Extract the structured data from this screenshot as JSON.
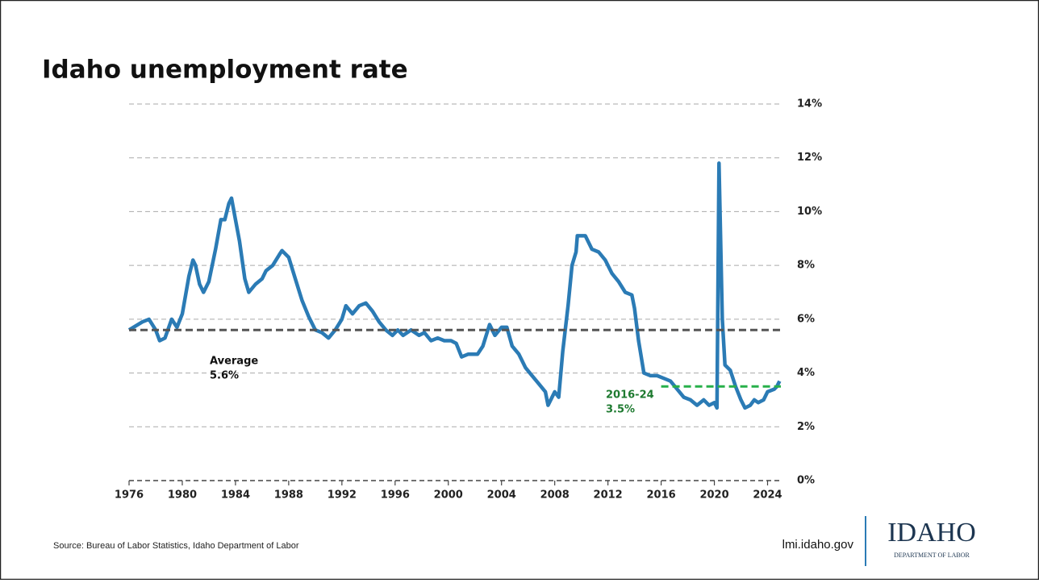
{
  "chart_data": {
    "type": "line",
    "title": "Idaho unemployment rate",
    "color": "#2b7bb5",
    "xlim": [
      1976,
      2025
    ],
    "xticks": [
      1976,
      1980,
      1984,
      1988,
      1992,
      1996,
      2000,
      2004,
      2008,
      2012,
      2016,
      2020,
      2024
    ],
    "ylim": [
      0,
      14
    ],
    "yticks": [
      {
        "value": 0,
        "label": "0%"
      },
      {
        "value": 2,
        "label": "2%"
      },
      {
        "value": 4,
        "label": "4%"
      },
      {
        "value": 6,
        "label": "6%"
      },
      {
        "value": 8,
        "label": "8%"
      },
      {
        "value": 10,
        "label": "10%"
      },
      {
        "value": 12,
        "label": "12%"
      },
      {
        "value": 14,
        "label": "14%"
      }
    ],
    "grid": true,
    "x": [
      1976.0,
      1977.0,
      1977.5,
      1978.0,
      1978.3,
      1978.7,
      1979.2,
      1979.6,
      1980.0,
      1980.5,
      1980.8,
      1981.0,
      1981.3,
      1981.6,
      1982.0,
      1982.5,
      1982.9,
      1983.2,
      1983.5,
      1983.7,
      1984.0,
      1984.3,
      1984.7,
      1985.0,
      1985.5,
      1986.0,
      1986.3,
      1986.8,
      1987.3,
      1987.5,
      1988.0,
      1988.5,
      1989.0,
      1989.5,
      1990.0,
      1990.5,
      1991.0,
      1991.5,
      1992.0,
      1992.3,
      1992.8,
      1993.3,
      1993.8,
      1994.3,
      1994.8,
      1995.3,
      1995.8,
      1996.2,
      1996.6,
      1997.2,
      1997.8,
      1998.2,
      1998.7,
      1999.2,
      1999.7,
      2000.2,
      2000.6,
      2001.0,
      2001.5,
      2002.2,
      2002.6,
      2003.1,
      2003.5,
      2004.0,
      2004.4,
      2004.8,
      2005.3,
      2005.8,
      2006.3,
      2006.8,
      2007.3,
      2007.5,
      2008.0,
      2008.3,
      2008.6,
      2009.0,
      2009.3,
      2009.6,
      2009.7,
      2010.3,
      2010.8,
      2011.3,
      2011.8,
      2012.3,
      2012.8,
      2013.3,
      2013.8,
      2014.0,
      2014.3,
      2014.7,
      2015.2,
      2015.7,
      2016.2,
      2016.7,
      2017.2,
      2017.7,
      2018.2,
      2018.7,
      2019.2,
      2019.6,
      2020.0,
      2020.2,
      2020.35,
      2020.6,
      2020.8,
      2021.2,
      2021.6,
      2022.0,
      2022.3,
      2022.7,
      2023.0,
      2023.3,
      2023.7,
      2024.0,
      2024.5,
      2024.7,
      2024.9
    ],
    "values": [
      5.6,
      5.9,
      6.0,
      5.6,
      5.2,
      5.3,
      6.0,
      5.7,
      6.2,
      7.6,
      8.2,
      8.0,
      7.3,
      7.0,
      7.4,
      8.6,
      9.7,
      9.7,
      10.3,
      10.5,
      9.7,
      8.9,
      7.5,
      7.0,
      7.3,
      7.5,
      7.8,
      8.0,
      8.4,
      8.55,
      8.3,
      7.5,
      6.7,
      6.1,
      5.6,
      5.5,
      5.3,
      5.6,
      6.0,
      6.5,
      6.2,
      6.5,
      6.6,
      6.3,
      5.9,
      5.6,
      5.4,
      5.6,
      5.4,
      5.6,
      5.4,
      5.5,
      5.2,
      5.3,
      5.2,
      5.2,
      5.1,
      4.6,
      4.7,
      4.7,
      5.0,
      5.8,
      5.4,
      5.7,
      5.7,
      5.0,
      4.7,
      4.2,
      3.9,
      3.6,
      3.3,
      2.8,
      3.3,
      3.1,
      4.8,
      6.5,
      8.0,
      8.5,
      9.1,
      9.1,
      8.6,
      8.5,
      8.2,
      7.7,
      7.4,
      7.0,
      6.9,
      6.4,
      5.2,
      4.0,
      3.9,
      3.9,
      3.8,
      3.7,
      3.4,
      3.1,
      3.0,
      2.8,
      3.0,
      2.8,
      2.9,
      2.7,
      11.8,
      6.0,
      4.3,
      4.1,
      3.5,
      3.0,
      2.7,
      2.8,
      3.0,
      2.9,
      3.0,
      3.3,
      3.4,
      3.5,
      3.7
    ],
    "reference_lines": [
      {
        "name": "Average",
        "value": 5.6,
        "value_label": "5.6%",
        "color": "#555555",
        "x": [
          1976,
          2025
        ]
      },
      {
        "name": "2016-24",
        "value": 3.5,
        "value_label": "3.5%",
        "color": "#27b04a",
        "x": [
          2016,
          2025
        ]
      }
    ]
  },
  "footer": {
    "source": "Source: Bureau of Labor Statistics, Idaho Department of Labor",
    "url": "lmi.idaho.gov",
    "logo_title": "IDAHO",
    "logo_subtitle": "DEPARTMENT OF LABOR"
  }
}
